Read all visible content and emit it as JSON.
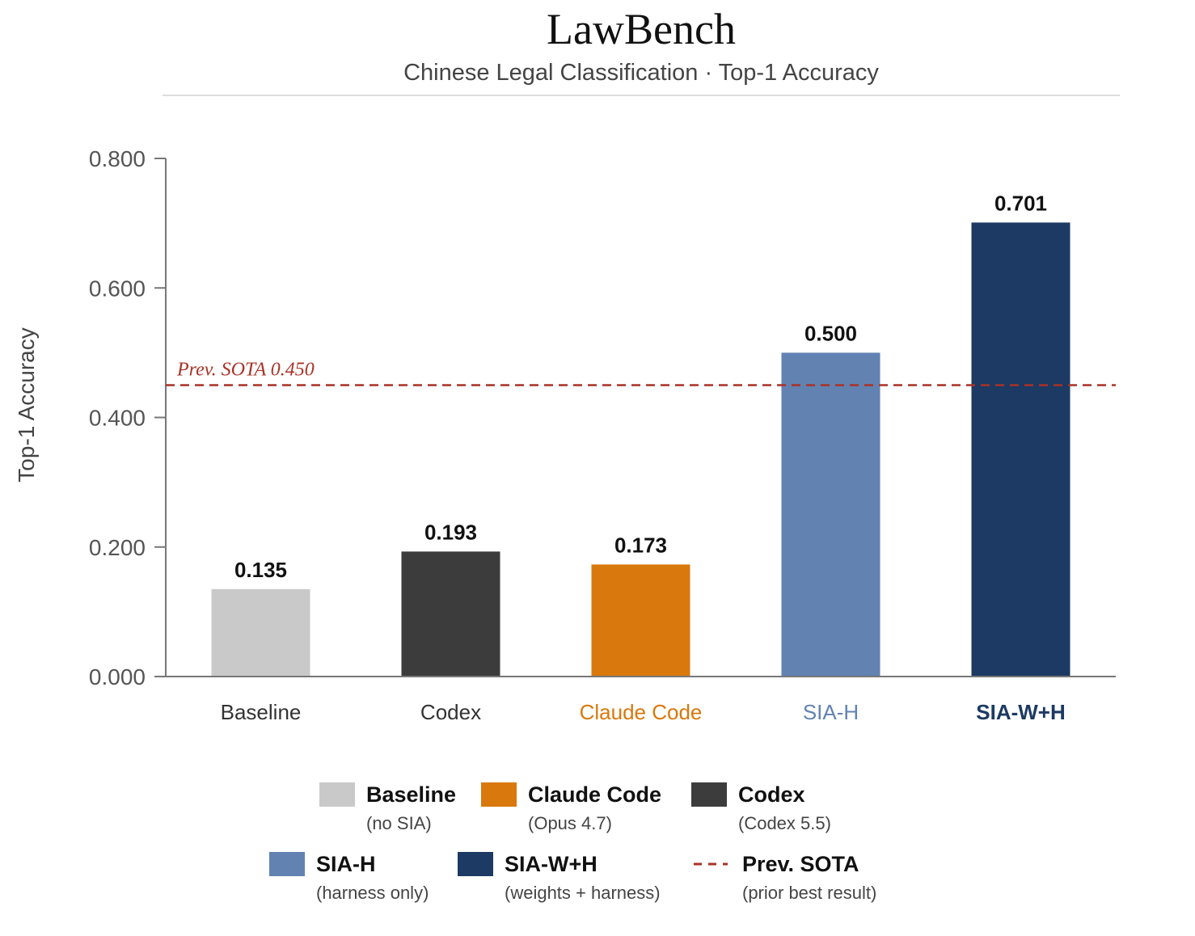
{
  "chart_data": {
    "type": "bar",
    "title": "LawBench",
    "subtitle": "Chinese Legal Classification · Top-1 Accuracy",
    "xlabel": "",
    "ylabel": "Top-1 Accuracy",
    "ylim": [
      0,
      0.8
    ],
    "yticks": [
      "0.000",
      "0.200",
      "0.400",
      "0.600",
      "0.800"
    ],
    "categories": [
      "Baseline",
      "Codex",
      "Claude Code",
      "SIA-H",
      "SIA-W+H"
    ],
    "values": [
      0.135,
      0.193,
      0.173,
      0.5,
      0.701
    ],
    "value_labels": [
      "0.135",
      "0.193",
      "0.173",
      "0.500",
      "0.701"
    ],
    "colors": [
      "#c9c9c9",
      "#3c3c3c",
      "#d9780c",
      "#6282b2",
      "#1c3a63"
    ],
    "category_label_colors": [
      "#333333",
      "#333333",
      "#d9780c",
      "#6282b2",
      "#1c3a63"
    ],
    "category_label_bold": [
      false,
      false,
      false,
      false,
      true
    ],
    "reference_line": {
      "value": 0.45,
      "label": "Prev. SOTA  0.450",
      "color": "#a93226",
      "style": "dashed"
    },
    "grid": false,
    "legend": {
      "position": "bottom",
      "rows": [
        [
          {
            "name": "Baseline",
            "note": "(no SIA)",
            "color": "#c9c9c9",
            "marker": "box"
          },
          {
            "name": "Claude Code",
            "note": "(Opus 4.7)",
            "color": "#d9780c",
            "marker": "box"
          },
          {
            "name": "Codex",
            "note": "(Codex 5.5)",
            "color": "#3c3c3c",
            "marker": "box"
          }
        ],
        [
          {
            "name": "SIA-H",
            "note": "(harness only)",
            "color": "#6282b2",
            "marker": "box"
          },
          {
            "name": "SIA-W+H",
            "note": "(weights + harness)",
            "color": "#1c3a63",
            "marker": "box"
          },
          {
            "name": "Prev. SOTA",
            "note": "(prior best result)",
            "color": "#a93226",
            "marker": "dashed-line"
          }
        ]
      ]
    }
  }
}
